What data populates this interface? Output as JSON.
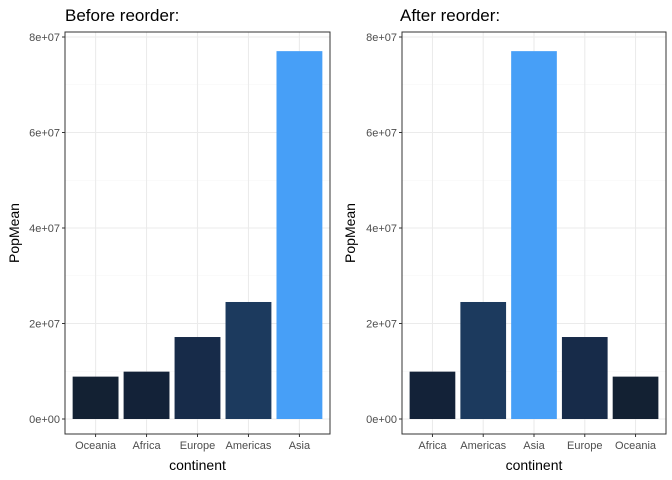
{
  "chart_data": [
    {
      "type": "bar",
      "title": "Before reorder:",
      "xlabel": "continent",
      "ylabel": "PopMean",
      "categories": [
        "Oceania",
        "Africa",
        "Europe",
        "Americas",
        "Asia"
      ],
      "values": [
        8874672,
        9916003,
        17169765,
        24504795,
        77038722
      ],
      "bar_colors": [
        "#132133",
        "#132238",
        "#172b49",
        "#1c3a5e",
        "#479ff7"
      ],
      "ylim": [
        0,
        80000000
      ],
      "yticks": [
        0,
        20000000,
        40000000,
        60000000,
        80000000
      ],
      "ytick_labels": [
        "0e+00",
        "2e+07",
        "4e+07",
        "6e+07",
        "8e+07"
      ],
      "grid": true,
      "legend": "none"
    },
    {
      "type": "bar",
      "title": "After reorder:",
      "xlabel": "continent",
      "ylabel": "PopMean",
      "categories": [
        "Africa",
        "Americas",
        "Asia",
        "Europe",
        "Oceania"
      ],
      "values": [
        9916003,
        24504795,
        77038722,
        17169765,
        8874672
      ],
      "bar_colors": [
        "#132238",
        "#1c3a5e",
        "#479ff7",
        "#172b49",
        "#132133"
      ],
      "ylim": [
        0,
        80000000
      ],
      "yticks": [
        0,
        20000000,
        40000000,
        60000000,
        80000000
      ],
      "ytick_labels": [
        "0e+00",
        "2e+07",
        "4e+07",
        "6e+07",
        "8e+07"
      ],
      "grid": true,
      "legend": "none"
    }
  ],
  "colors": {
    "panel_border": "#333333",
    "grid_major": "#ebebeb",
    "grid_minor": "#f5f5f5",
    "tick": "#333333"
  }
}
